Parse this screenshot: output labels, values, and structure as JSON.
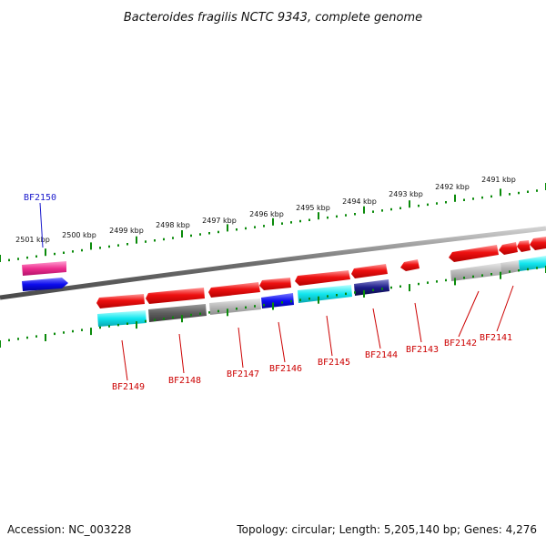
{
  "header": {
    "title": "Bacteroides fragilis NCTC 9343, complete genome"
  },
  "footer": {
    "accession": "Accession: NC_003228",
    "summary": "Topology: circular; Length: 5,205,140 bp; Genes: 4,276"
  },
  "ruler": {
    "labels": [
      "2501 kbp",
      "2500 kbp",
      "2499 kbp",
      "2498 kbp",
      "2497 kbp",
      "2496 kbp",
      "2495 kbp",
      "2494 kbp",
      "2493 kbp",
      "2492 kbp",
      "2491 kbp"
    ]
  },
  "gene_labels": [
    "BF2150",
    "BF2149",
    "BF2148",
    "BF2147",
    "BF2146",
    "BF2145",
    "BF2144",
    "BF2143",
    "BF2142",
    "BF2141"
  ],
  "colors": {
    "forward_gene": "#ee1111",
    "highlight_label": "#1a1acc",
    "label": "#cc0000",
    "tick": "#0a8a0a",
    "backbone": "#6e6e6e",
    "magenta": "#ee2f8f",
    "blue": "#0c0cee",
    "cyan": "#12e6ee",
    "dark_gray": "#5e5e5e",
    "light_gray": "#b8b8b8",
    "navy": "#1c1c88"
  },
  "legend": {
    "visible": false
  }
}
